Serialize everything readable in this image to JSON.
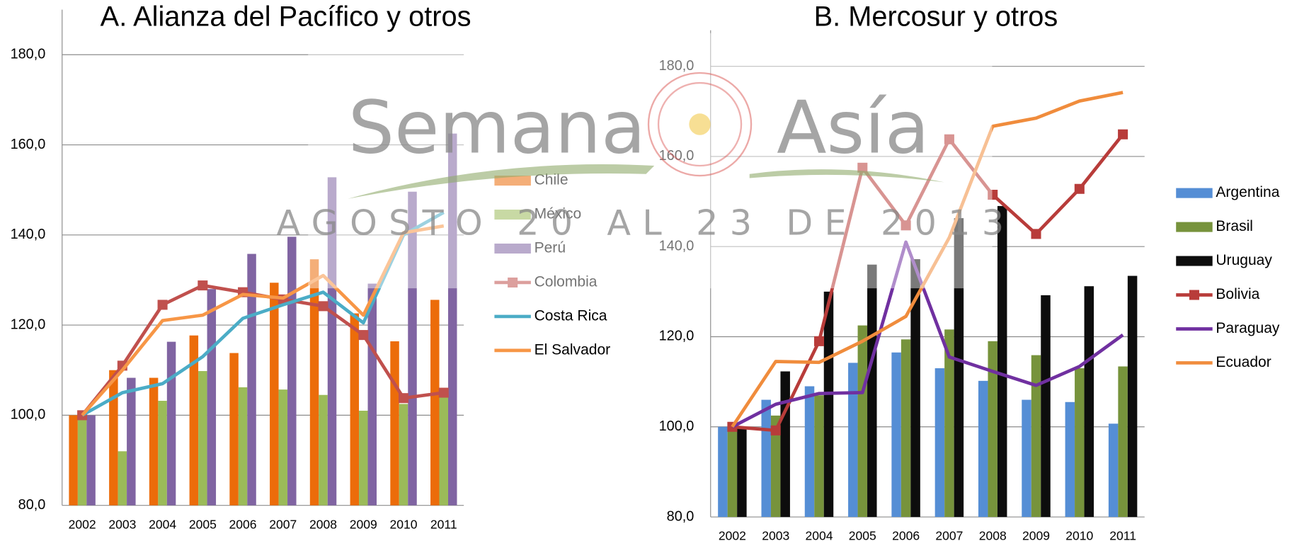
{
  "watermark": {
    "left": "Semana",
    "right": "Asía",
    "date": "AGOSTO 20 AL 23 DE 2013"
  },
  "chart_data": [
    {
      "type": "combo",
      "title": "A. Alianza del Pacífico y otros",
      "categories": [
        "2002",
        "2003",
        "2004",
        "2005",
        "2006",
        "2007",
        "2008",
        "2009",
        "2010",
        "2011"
      ],
      "ylim": [
        80,
        190
      ],
      "yticks": [
        {
          "value": 80,
          "label": "80,0"
        },
        {
          "value": 100,
          "label": "100,0"
        },
        {
          "value": 120,
          "label": "120,0"
        },
        {
          "value": 140,
          "label": "140,0"
        },
        {
          "value": 160,
          "label": "160,0"
        },
        {
          "value": 180,
          "label": "180,0"
        }
      ],
      "grid": true,
      "series": [
        {
          "name": "Chile",
          "type": "bar",
          "color": "#ec6c0a",
          "values": [
            100,
            110,
            108.3,
            117.7,
            113.8,
            129.4,
            134.6,
            122.6,
            116.4,
            125.6
          ]
        },
        {
          "name": "México",
          "type": "bar",
          "color": "#9bbb59",
          "values": [
            100,
            92,
            103.2,
            109.8,
            106.2,
            105.7,
            104.5,
            101,
            102.5,
            104
          ]
        },
        {
          "name": "Perú",
          "type": "bar",
          "color": "#8064a2",
          "values": [
            100,
            108.3,
            116.3,
            128,
            135.8,
            139.6,
            152.8,
            129.2,
            149.6,
            162.5
          ]
        },
        {
          "name": "Colombia",
          "type": "line",
          "marker": "square",
          "color": "#c0504d",
          "values": [
            100,
            111,
            124.5,
            128.8,
            127.3,
            125.7,
            124.2,
            117.8,
            103.8,
            105
          ]
        },
        {
          "name": "Costa Rica",
          "type": "line",
          "color": "#4bacc6",
          "values": [
            100,
            105,
            107,
            113,
            121.5,
            124.5,
            127.3,
            120.5,
            140,
            145
          ]
        },
        {
          "name": "El Salvador",
          "type": "line",
          "color": "#f79646",
          "values": [
            100,
            110,
            121,
            122.2,
            126.8,
            126,
            131,
            122.2,
            140.5,
            142
          ]
        }
      ]
    },
    {
      "type": "combo",
      "title": "B. Mercosur y otros",
      "categories": [
        "2002",
        "2003",
        "2004",
        "2005",
        "2006",
        "2007",
        "2008",
        "2009",
        "2010",
        "2011"
      ],
      "ylim": [
        80,
        188
      ],
      "yticks": [
        {
          "value": 80,
          "label": "80,0"
        },
        {
          "value": 100,
          "label": "100,0"
        },
        {
          "value": 120,
          "label": "120,0"
        },
        {
          "value": 140,
          "label": "140,0"
        },
        {
          "value": 160,
          "label": "160,0"
        },
        {
          "value": 180,
          "label": "180,0"
        }
      ],
      "grid": true,
      "series": [
        {
          "name": "Argentina",
          "type": "bar",
          "color": "#558ed5",
          "values": [
            100,
            106,
            109,
            114.2,
            116.5,
            113,
            110.2,
            106,
            105.5,
            100.7
          ]
        },
        {
          "name": "Brasil",
          "type": "bar",
          "color": "#77933c",
          "values": [
            100,
            102.5,
            107,
            122.5,
            119.4,
            121.6,
            119,
            115.9,
            113,
            113.4
          ]
        },
        {
          "name": "Uruguay",
          "type": "bar",
          "color": "#0d0d0d",
          "values": [
            100,
            112.3,
            130,
            136,
            137.2,
            146.3,
            149,
            129.2,
            131.2,
            133.5
          ]
        },
        {
          "name": "Bolivia",
          "type": "line",
          "marker": "square",
          "color": "#b83c3a",
          "values": [
            100,
            99.2,
            119,
            157.5,
            144.7,
            163.8,
            151.5,
            142.8,
            152.8,
            164.9
          ]
        },
        {
          "name": "Paraguay",
          "type": "line",
          "color": "#7030a0",
          "values": [
            100,
            105,
            107.4,
            107.6,
            141,
            115.5,
            112.3,
            109.2,
            113.4,
            120.4
          ]
        },
        {
          "name": "Ecuador",
          "type": "line",
          "color": "#f08c3c",
          "values": [
            100,
            114.5,
            114.3,
            119,
            124.5,
            142,
            166.7,
            168.5,
            172.3,
            174.2
          ]
        }
      ]
    }
  ]
}
